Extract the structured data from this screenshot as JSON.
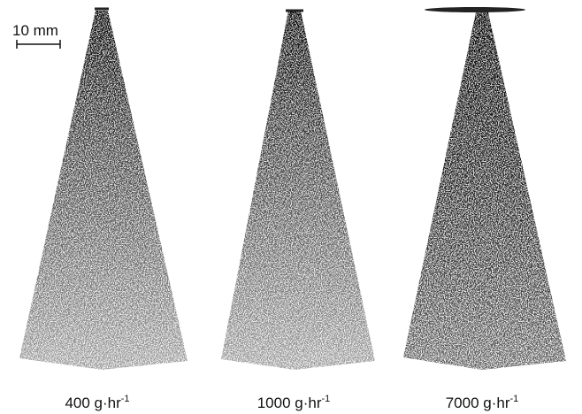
{
  "scale_bar": {
    "label": "10 mm"
  },
  "panels": [
    {
      "label": "400 g·hr",
      "exponent": "-1"
    },
    {
      "label": "1000 g·hr",
      "exponent": "-1"
    },
    {
      "label": "7000 g·hr",
      "exponent": "-1"
    }
  ]
}
